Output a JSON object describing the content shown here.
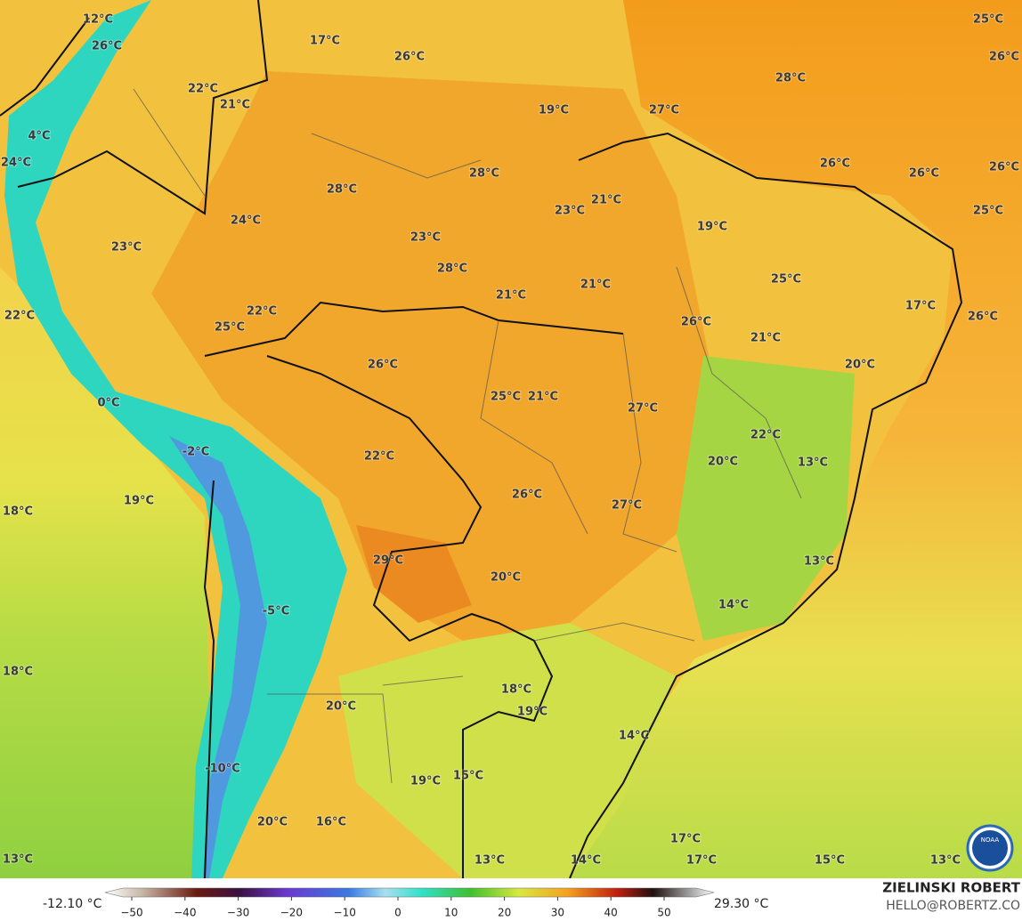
{
  "map": {
    "labels": [
      "12°C",
      "26°C",
      "17°C",
      "26°C",
      "25°C",
      "26°C",
      "28°C",
      "22°C",
      "21°C",
      "19°C",
      "27°C",
      "4°C",
      "24°C",
      "26°C",
      "26°C",
      "26°C",
      "28°C",
      "28°C",
      "21°C",
      "23°C",
      "25°C",
      "24°C",
      "19°C",
      "23°C",
      "23°C",
      "28°C",
      "25°C",
      "21°C",
      "21°C",
      "17°C",
      "22°C",
      "22°C",
      "26°C",
      "26°C",
      "25°C",
      "21°C",
      "26°C",
      "20°C",
      "25°C",
      "21°C",
      "27°C",
      "0°C",
      "22°C",
      "-2°C",
      "22°C",
      "20°C",
      "13°C",
      "26°C",
      "19°C",
      "27°C",
      "18°C",
      "29°C",
      "13°C",
      "20°C",
      "14°C",
      "-5°C",
      "18°C",
      "18°C",
      "20°C",
      "19°C",
      "14°C",
      "-10°C",
      "19°C",
      "15°C",
      "20°C",
      "16°C",
      "17°C",
      "13°C",
      "13°C",
      "14°C",
      "17°C",
      "15°C",
      "13°C"
    ]
  },
  "legend": {
    "min_label": "-12.10 °C",
    "max_label": "29.30 °C",
    "ticks": [
      {
        "value": -50,
        "label": "−50"
      },
      {
        "value": -40,
        "label": "−40"
      },
      {
        "value": -30,
        "label": "−30"
      },
      {
        "value": -20,
        "label": "−20"
      },
      {
        "value": -10,
        "label": "−10"
      },
      0,
      10,
      20,
      30,
      40,
      50
    ]
  },
  "credit": {
    "name": "ZIELINSKI ROBERT",
    "email": "HELLO@ROBERTZ.CO",
    "logo": "NOAA"
  }
}
